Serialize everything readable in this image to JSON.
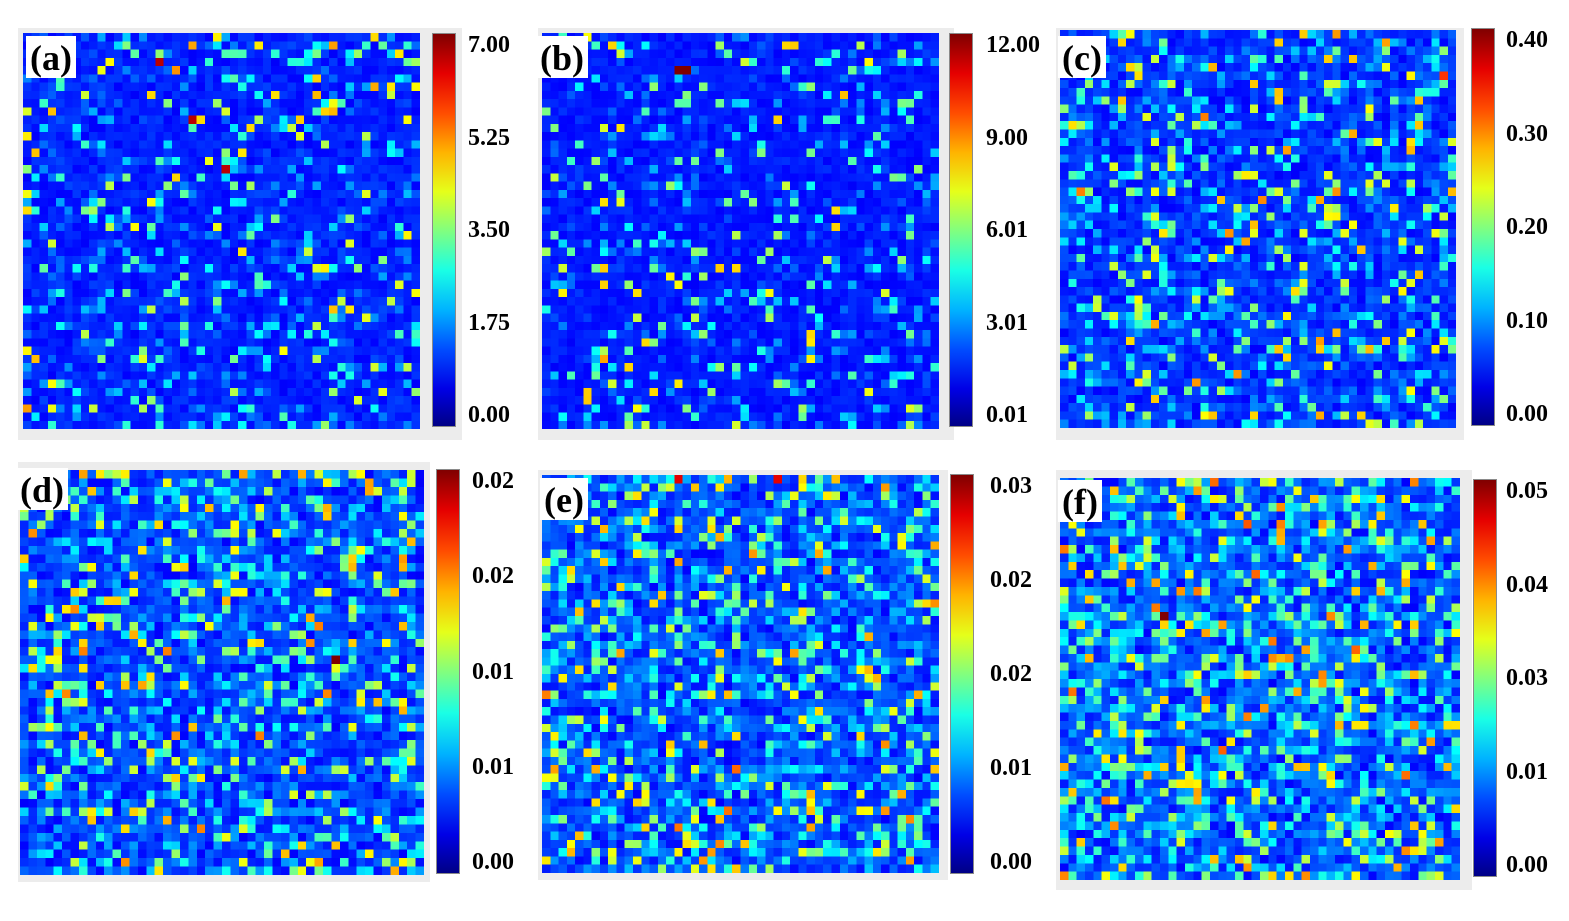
{
  "chart_data": [
    {
      "type": "heatmap",
      "panel_label": "(a)",
      "colormap": "jet",
      "grid_size": [
        48,
        48
      ],
      "background_value": 0.0,
      "colorbar": {
        "min": 0.0,
        "max": 7.0,
        "ticks": [
          "0.00",
          "1.75",
          "3.50",
          "5.25",
          "7.00"
        ]
      },
      "hotspots": [
        [
          5.6,
          18.5,
          1.0,
          4.8
        ],
        [
          34.8,
          6.7,
          0.9,
          6.6
        ],
        [
          42.6,
          20.7,
          0.9,
          6.6
        ],
        [
          51.2,
          34.4,
          1.0,
          6.6
        ],
        [
          56.4,
          23.3,
          0.9,
          4.6
        ],
        [
          60.3,
          2.2,
          1.0,
          4.5
        ]
      ]
    },
    {
      "type": "heatmap",
      "panel_label": "(b)",
      "colormap": "jet",
      "grid_size": [
        48,
        48
      ],
      "background_value": 0.01,
      "colorbar": {
        "min": 0.01,
        "max": 12.0,
        "ticks": [
          "0.01",
          "3.01",
          "6.01",
          "9.00",
          "12.00"
        ]
      },
      "hotspots": [
        [
          33.5,
          8.0,
          2.2,
          12.0
        ],
        [
          34.8,
          8.0,
          1.4,
          12.0
        ],
        [
          33.5,
          16.5,
          2.0,
          5.5
        ],
        [
          85.8,
          14.7,
          1.1,
          4.0
        ]
      ]
    },
    {
      "type": "heatmap",
      "panel_label": "(c)",
      "colormap": "jet",
      "grid_size": [
        48,
        48
      ],
      "background_value": 0.0,
      "colorbar": {
        "min": 0.0,
        "max": 0.4,
        "ticks": [
          "0.00",
          "0.10",
          "0.20",
          "0.30",
          "0.40"
        ]
      },
      "hotspots": [
        [
          35.5,
          21.0,
          0.9,
          0.3
        ],
        [
          98.2,
          11.3,
          1.0,
          0.33
        ],
        [
          5.0,
          39.8,
          0.9,
          0.3
        ]
      ]
    },
    {
      "type": "heatmap",
      "panel_label": "(d)",
      "colormap": "jet",
      "grid_size": [
        48,
        48
      ],
      "background_value": 0.0,
      "colorbar": {
        "min": 0.0,
        "max": 0.02,
        "ticks": [
          "0.00",
          "0.01",
          "0.01",
          "0.02",
          "0.02"
        ]
      },
      "hotspots": [
        [
          78.5,
          46.1,
          0.9,
          0.02
        ],
        [
          15.1,
          45.3,
          1.0,
          0.015
        ],
        [
          35.5,
          44.0,
          1.1,
          0.015
        ],
        [
          75.1,
          38.5,
          1.0,
          0.015
        ]
      ]
    },
    {
      "type": "heatmap",
      "panel_label": "(e)",
      "colormap": "jet",
      "grid_size": [
        48,
        48
      ],
      "background_value": 0.0,
      "colorbar": {
        "min": 0.0,
        "max": 0.03,
        "ticks": [
          "0.00",
          "0.01",
          "0.02",
          "0.02",
          "0.03"
        ]
      },
      "hotspots": [
        [
          33.0,
          0.3,
          0.8,
          0.027
        ],
        [
          59.6,
          0.3,
          0.8,
          0.027
        ]
      ]
    },
    {
      "type": "heatmap",
      "panel_label": "(f)",
      "colormap": "jet",
      "grid_size": [
        48,
        48
      ],
      "background_value": 0.0,
      "colorbar": {
        "min": 0.0,
        "max": 0.05,
        "ticks": [
          "0.00",
          "0.01",
          "0.03",
          "0.04",
          "0.05"
        ]
      },
      "hotspots": [
        [
          26.5,
          33.6,
          1.2,
          0.05
        ],
        [
          26.0,
          34.6,
          1.0,
          0.05
        ]
      ]
    }
  ]
}
